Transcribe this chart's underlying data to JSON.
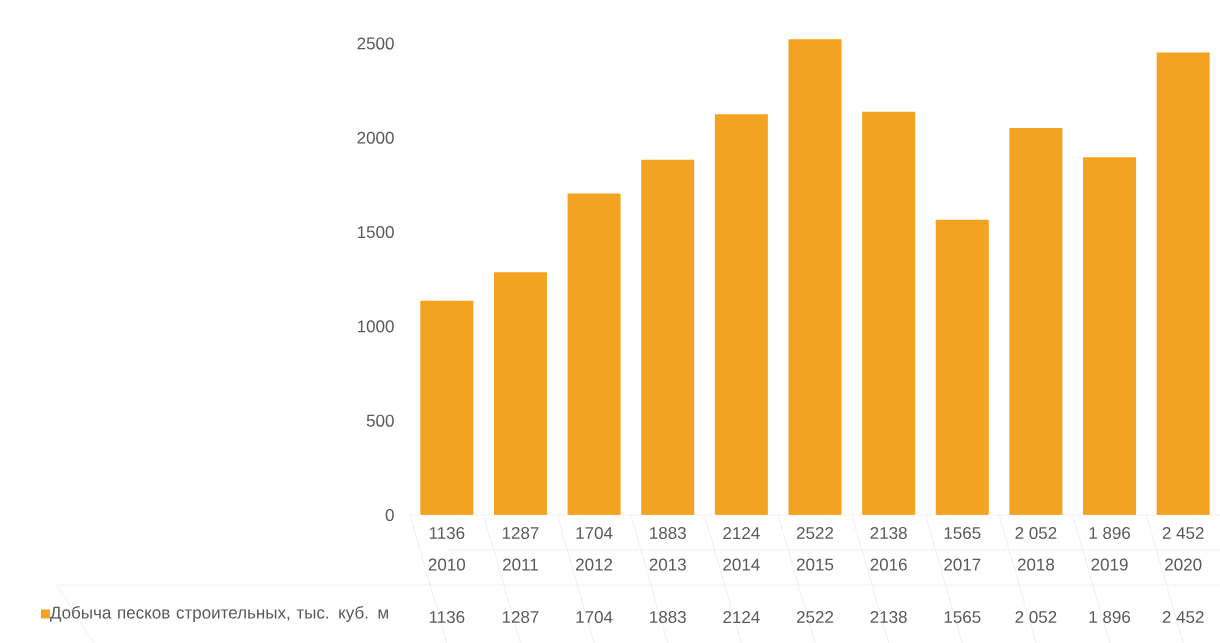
{
  "chart_data": {
    "type": "bar",
    "categories": [
      "2010",
      "2011",
      "2012",
      "2013",
      "2014",
      "2015",
      "2016",
      "2017",
      "2018",
      "2019",
      "2020"
    ],
    "series": [
      {
        "name": "Добыча песков строительных, тыс. куб. м",
        "color": "#f3a321",
        "values": [
          1136,
          1287,
          1704,
          1883,
          2124,
          2522,
          2138,
          1565,
          2052,
          1896,
          2452
        ],
        "value_labels": [
          "1136",
          "1287",
          "1704",
          "1883",
          "2124",
          "2522",
          "2138",
          "1565",
          "2 052",
          "1 896",
          "2 452"
        ]
      }
    ],
    "ylim": [
      0,
      2550
    ],
    "yticks": [
      0,
      500,
      1000,
      1500,
      2000,
      2500
    ],
    "legend": "bottom"
  }
}
